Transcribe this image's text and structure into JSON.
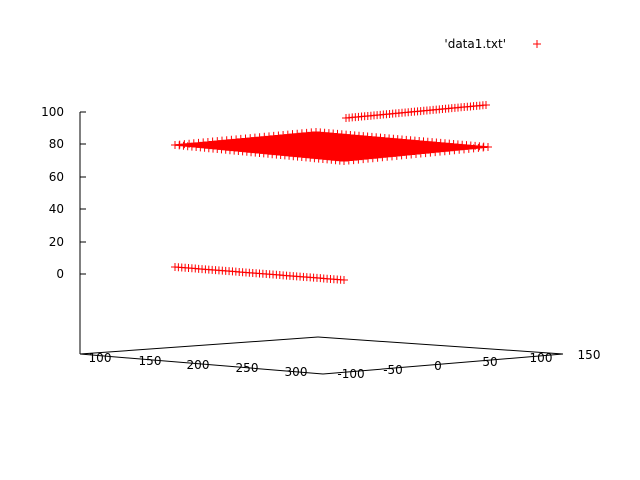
{
  "legend": {
    "label": "'data1.txt'",
    "marker": "+",
    "color": "#ff0000"
  },
  "chart_data": {
    "type": "scatter",
    "projection": "3d",
    "series": [
      {
        "name": "'data1.txt'",
        "color": "#ff0000",
        "marker": "+",
        "segments": [
          {
            "description_x": [
              100,
              300
            ],
            "y": [
              100,
              100
            ],
            "z": [
              0,
              0
            ]
          },
          {
            "x": [
              100,
              100
            ],
            "y": [
              -100,
              100
            ],
            "z": [
              80,
              80
            ]
          },
          {
            "x": [
              300,
              300
            ],
            "y": [
              -100,
              100
            ],
            "z": [
              80,
              80
            ]
          },
          {
            "x": [
              100,
              300
            ],
            "y": [
              -100,
              -100
            ],
            "z": [
              80,
              80
            ]
          },
          {
            "x": [
              100,
              300
            ],
            "y": [
              100,
              100
            ],
            "z": [
              80,
              80
            ]
          },
          {
            "x": [
              100,
              300
            ],
            "y": [
              -100,
              -100
            ],
            "z": [
              100,
              100
            ]
          }
        ]
      }
    ],
    "xticks": [
      "100",
      "150",
      "200",
      "250",
      "300"
    ],
    "yticks": [
      "-100",
      "-50",
      "0",
      "50",
      "100",
      "150"
    ],
    "zticks": [
      "0",
      "20",
      "40",
      "60",
      "80",
      "100"
    ],
    "xrange": [
      100,
      300
    ],
    "yrange": [
      -100,
      150
    ],
    "zrange": [
      0,
      100
    ],
    "legend_position": "top-right",
    "grid": false
  }
}
